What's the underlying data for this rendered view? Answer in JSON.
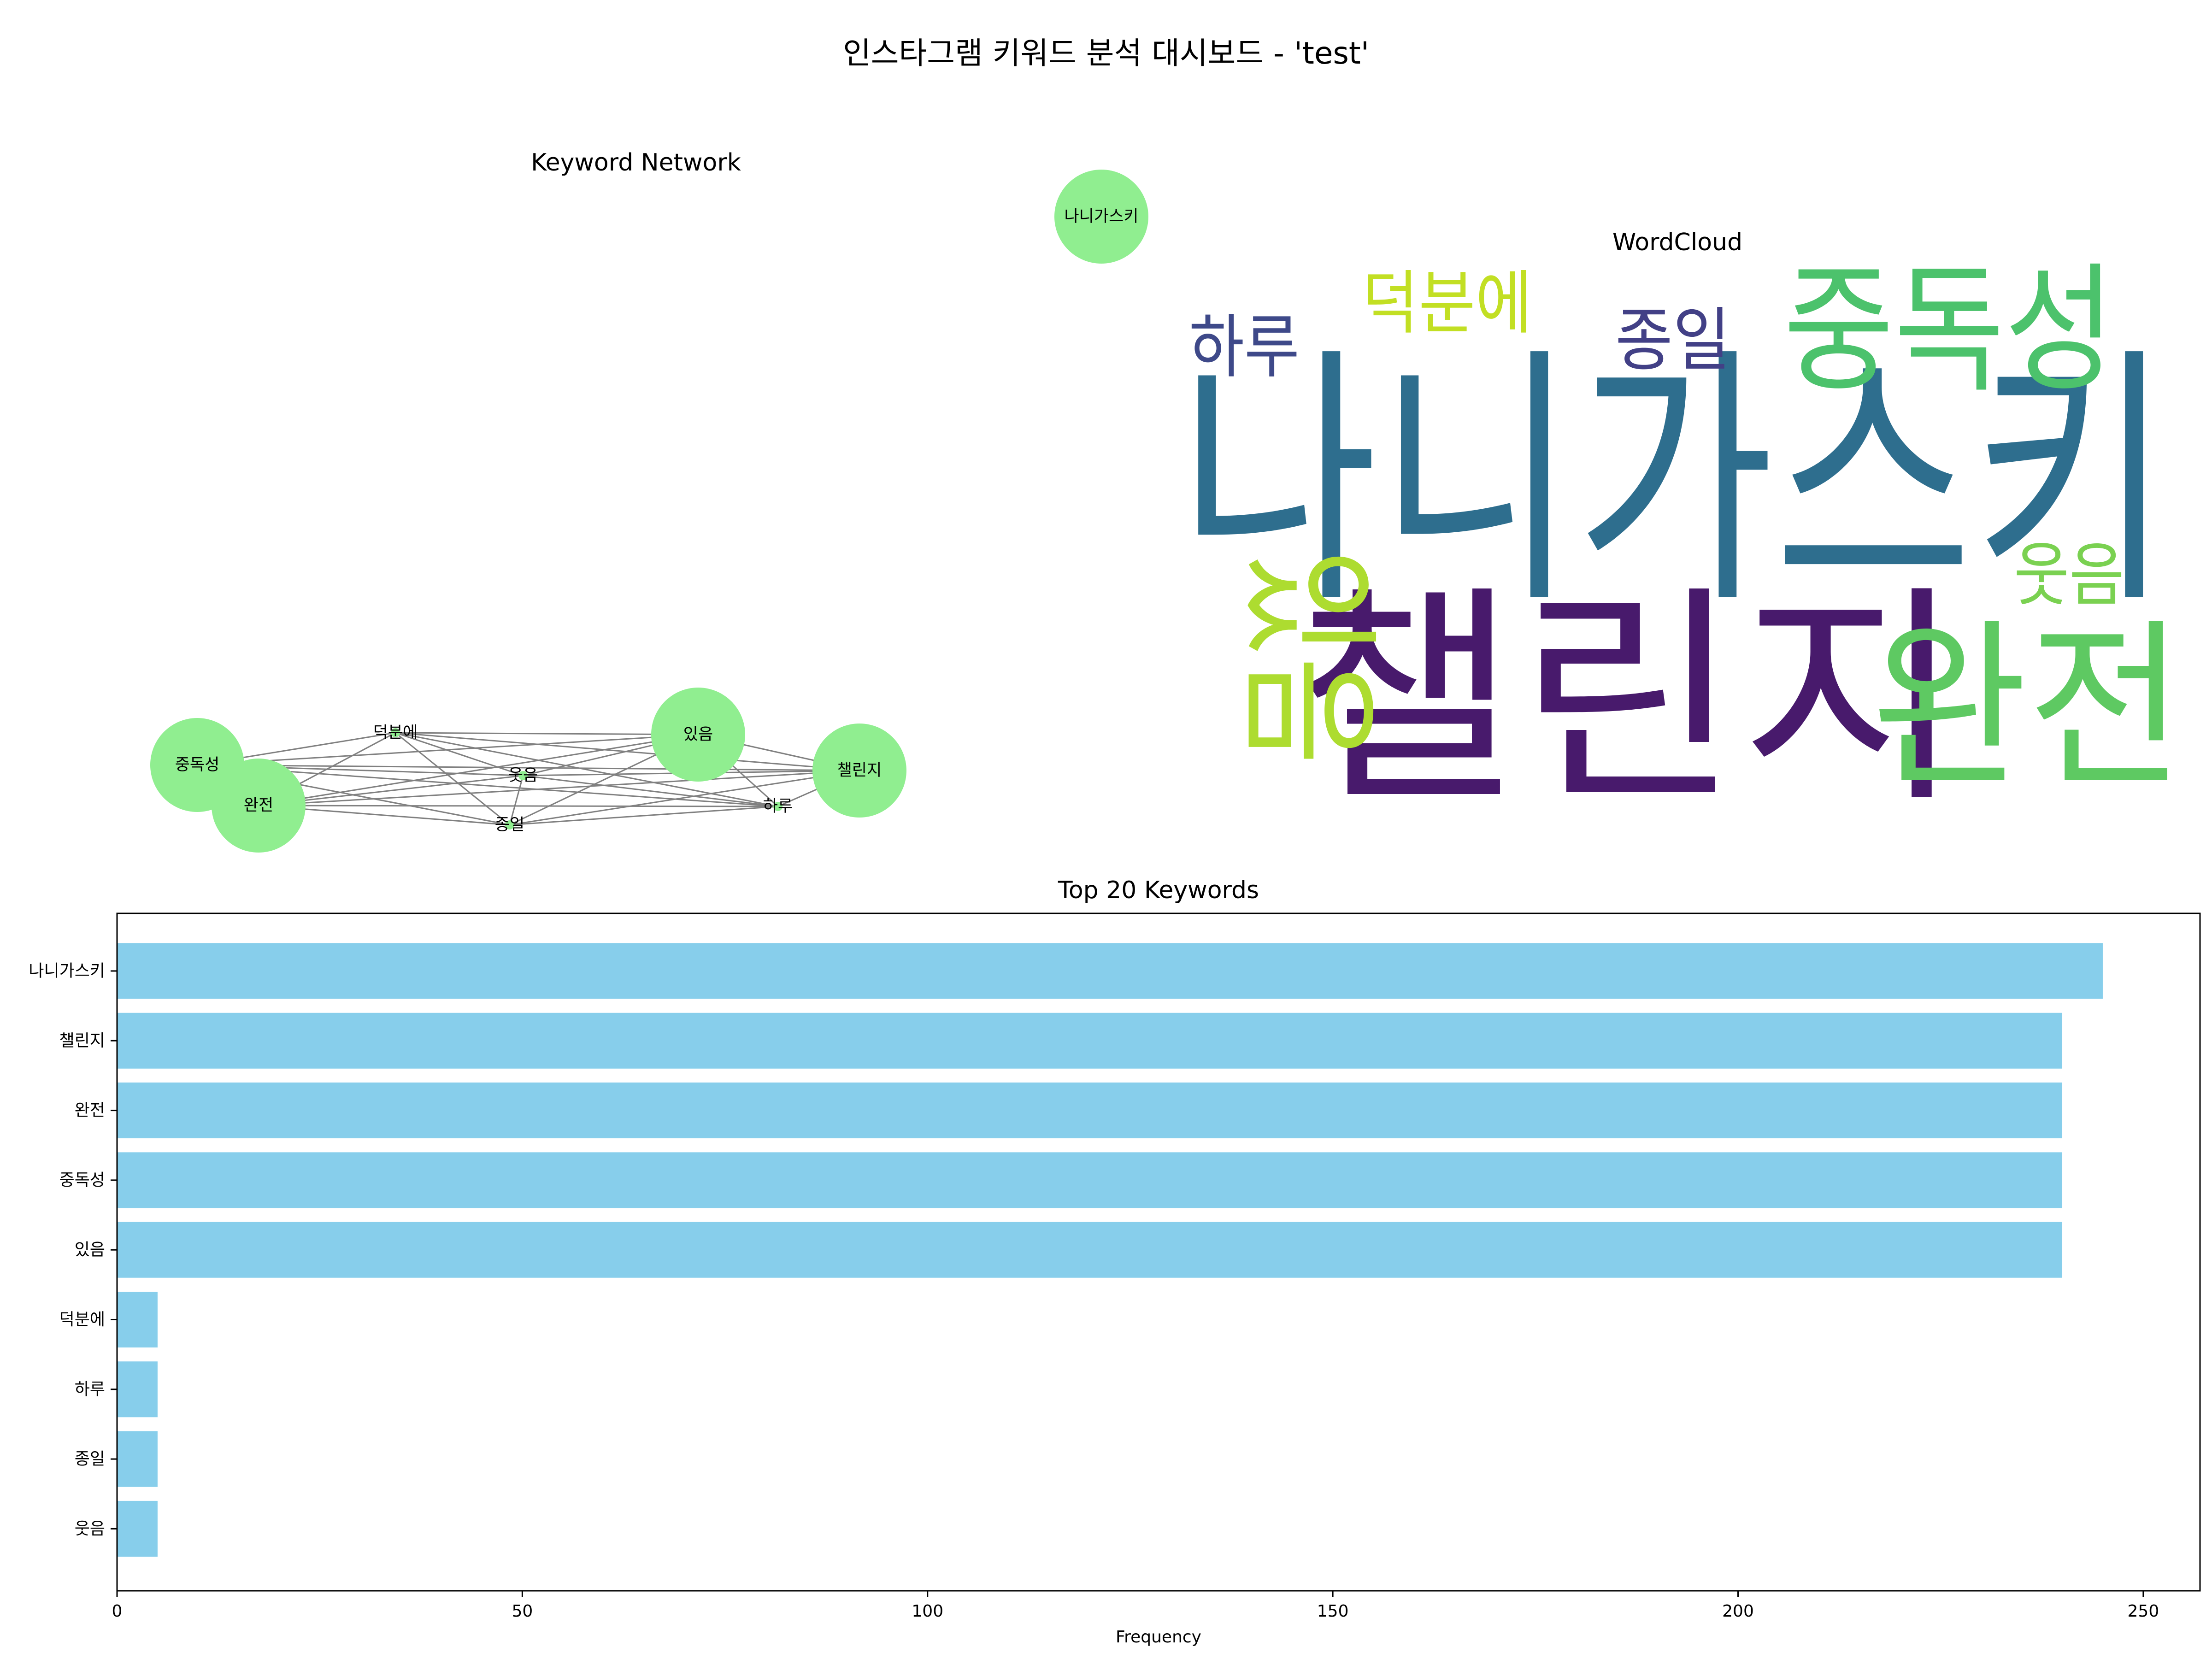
{
  "suptitle": "인스타그램 키워드 분석 대시보드 - 'test'",
  "network": {
    "title": "Keyword Network",
    "node_color": "#90ee90",
    "edge_color": "#808080",
    "nodes": [
      {
        "label": "나니가스키",
        "size": "large"
      },
      {
        "label": "중독성",
        "size": "large"
      },
      {
        "label": "완전",
        "size": "large"
      },
      {
        "label": "있음",
        "size": "large"
      },
      {
        "label": "챌린지",
        "size": "large"
      },
      {
        "label": "덕분에",
        "size": "small"
      },
      {
        "label": "웃음",
        "size": "small"
      },
      {
        "label": "종일",
        "size": "small"
      },
      {
        "label": "하루",
        "size": "small"
      }
    ]
  },
  "wordcloud": {
    "title": "WordCloud",
    "words": [
      {
        "text": "나니가스키",
        "color": "#2e6e8e"
      },
      {
        "text": "챌린지",
        "color": "#481a6c"
      },
      {
        "text": "완전",
        "color": "#5ec962"
      },
      {
        "text": "중독성",
        "color": "#4cc26c"
      },
      {
        "text": "있음",
        "color": "#addc30"
      },
      {
        "text": "덕분에",
        "color": "#c2df23"
      },
      {
        "text": "하루",
        "color": "#3e4989"
      },
      {
        "text": "종일",
        "color": "#424086"
      },
      {
        "text": "웃음",
        "color": "#7ad151"
      }
    ]
  },
  "chart_data": {
    "type": "bar",
    "orientation": "horizontal",
    "title": "Top 20 Keywords",
    "xlabel": "Frequency",
    "ylabel": "",
    "bar_color": "#87ceeb",
    "categories": [
      "나니가스키",
      "챌린지",
      "완전",
      "중독성",
      "있음",
      "덕분에",
      "하루",
      "종일",
      "웃음"
    ],
    "values": [
      245,
      240,
      240,
      240,
      240,
      5,
      5,
      5,
      5
    ],
    "xlim": [
      0,
      257
    ],
    "xticks": [
      0,
      50,
      100,
      150,
      200,
      250
    ],
    "grid": false
  }
}
